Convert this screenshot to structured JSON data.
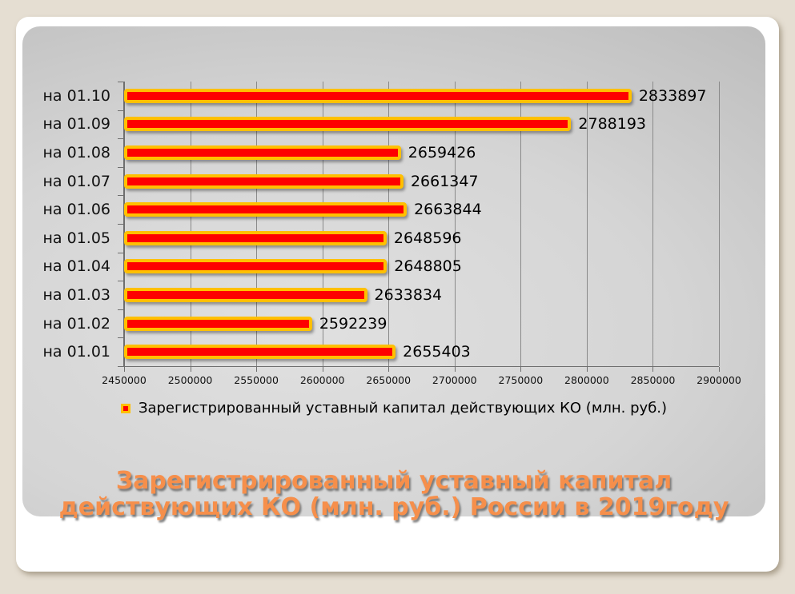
{
  "colors": {
    "page_background": "#e5ded2",
    "slide_background": "#ffffff",
    "panel_gradient_light": "#e0e0e0",
    "panel_gradient_dark": "#a6a6a6",
    "bar_fill": "#fe0000",
    "bar_border": "#ffc000",
    "gridline": "#8a8a8a",
    "axis": "#6f6f6f",
    "label_text": "#111111",
    "title_color": "#f68f4b"
  },
  "chart_data": {
    "type": "bar",
    "orientation": "horizontal",
    "title": "Зарегистрированный уставный капитал действующих КО (млн. руб.) России в 2019году",
    "categories": [
      "на 01.10",
      "на 01.09",
      "на 01.08",
      "на 01.07",
      "на 01.06",
      "на 01.05",
      "на 01.04",
      "на 01.03",
      "на 01.02",
      "на 01.01"
    ],
    "series": [
      {
        "name": "Зарегистрированный уставный капитал действующих КО (млн. руб.)",
        "values": [
          2833897,
          2788193,
          2659426,
          2661347,
          2663844,
          2648596,
          2648805,
          2633834,
          2592239,
          2655403
        ]
      }
    ],
    "data_labels": [
      "2833897",
      "2788193",
      "2659426",
      "2661347",
      "2663844",
      "2648596",
      "2648805",
      "2633834",
      "2592239",
      "2655403"
    ],
    "xlim": [
      2450000,
      2900000
    ],
    "x_ticks": [
      2450000,
      2500000,
      2550000,
      2600000,
      2650000,
      2700000,
      2750000,
      2800000,
      2850000,
      2900000
    ],
    "grid": "vertical-only",
    "legend_position": "bottom"
  },
  "legend": {
    "label": "Зарегистрированный уставный капитал действующих КО (млн. руб.)"
  },
  "title": {
    "line1": "Зарегистрированный уставный капитал",
    "line2": "действующих КО (млн. руб.) России в 2019году"
  }
}
